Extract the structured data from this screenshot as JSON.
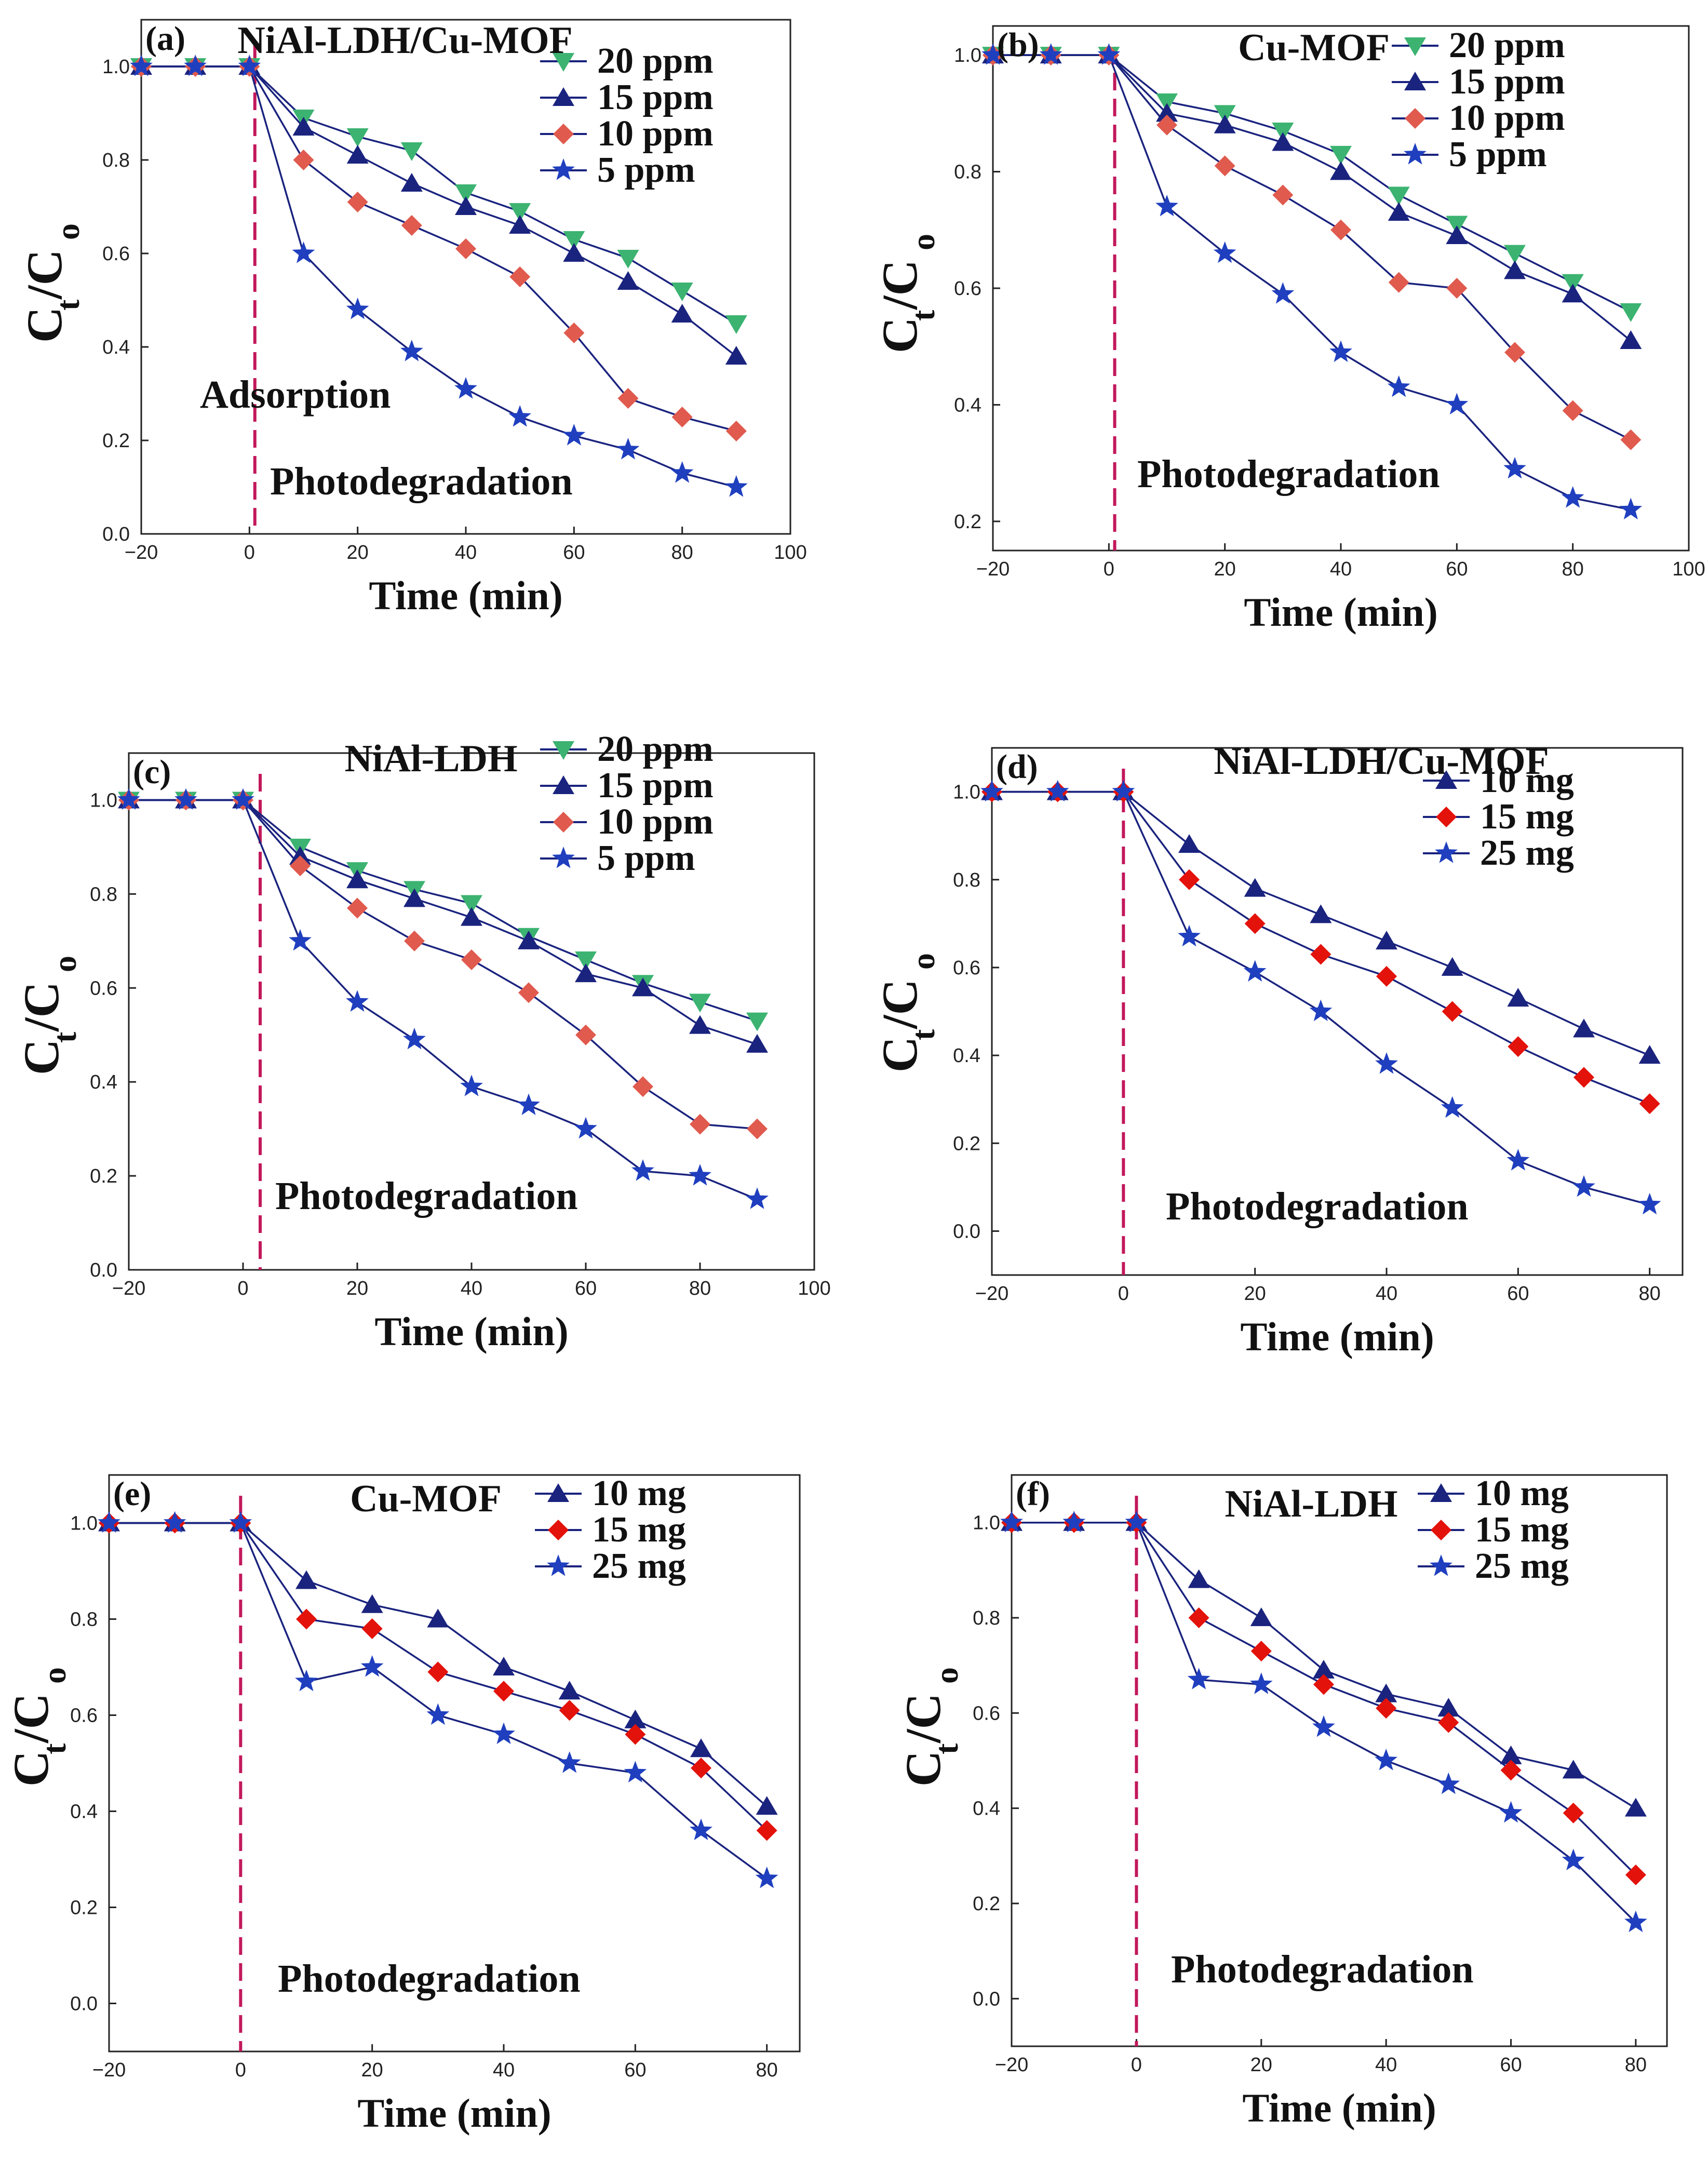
{
  "figure": {
    "colors": {
      "c20": "#3cb371",
      "c15": "#1a237e",
      "c10": "#e05a4e",
      "c5": "#1f3fbf",
      "red_dark": "#e3120b",
      "marker_line": "#1a237e",
      "dashed_line": "#c2185b"
    }
  },
  "chart_data": [
    {
      "id": "a",
      "type": "line",
      "panel_label": "(a)",
      "title": "NiAl-LDH/Cu-MOF",
      "xlabel": "Time (min)",
      "ylabel": "C",
      "ylabel_sub1": "t",
      "ylabel_slash": "/C",
      "ylabel_sub2": "o",
      "xlim": [
        -20,
        100
      ],
      "ylim": [
        0,
        1.1
      ],
      "xticks": [
        "−20",
        "0",
        "20",
        "40",
        "60",
        "80",
        "100"
      ],
      "xtick_values": [
        -20,
        0,
        20,
        40,
        60,
        80,
        100
      ],
      "yticks": [
        "0.0",
        "0.2",
        "0.4",
        "0.6",
        "0.8",
        "1.0"
      ],
      "ytick_values": [
        0,
        0.2,
        0.4,
        0.6,
        0.8,
        1.0
      ],
      "dashed_x": 1,
      "annotations": [
        "Adsorption",
        "Photodegradation"
      ],
      "x": [
        -20,
        -10,
        0,
        10,
        20,
        30,
        40,
        50,
        60,
        70,
        80,
        90
      ],
      "series": [
        {
          "name": "20 ppm",
          "marker": "triangle-down",
          "color_key": "c20",
          "values": [
            1,
            1,
            1,
            0.89,
            0.85,
            0.82,
            0.73,
            0.69,
            0.63,
            0.59,
            0.52,
            0.45
          ]
        },
        {
          "name": "15 ppm",
          "marker": "triangle-up",
          "color_key": "c15",
          "values": [
            1,
            1,
            1,
            0.87,
            0.81,
            0.75,
            0.7,
            0.66,
            0.6,
            0.54,
            0.47,
            0.38
          ]
        },
        {
          "name": "10 ppm",
          "marker": "diamond",
          "color_key": "c10",
          "values": [
            1,
            1,
            1,
            0.8,
            0.71,
            0.66,
            0.61,
            0.55,
            0.43,
            0.29,
            0.25,
            0.22
          ]
        },
        {
          "name": "5 ppm",
          "marker": "star",
          "color_key": "c5",
          "values": [
            1,
            1,
            1,
            0.6,
            0.48,
            0.39,
            0.31,
            0.25,
            0.21,
            0.18,
            0.13,
            0.1
          ]
        }
      ]
    },
    {
      "id": "b",
      "type": "line",
      "panel_label": "(b)",
      "title": "Cu-MOF",
      "xlabel": "Time (min)",
      "ylabel": "C",
      "ylabel_sub1": "t",
      "ylabel_slash": "/C",
      "ylabel_sub2": "o",
      "xlim": [
        -20,
        100
      ],
      "ylim": [
        0.15,
        1.05
      ],
      "xticks": [
        "−20",
        "0",
        "20",
        "40",
        "60",
        "80",
        "100"
      ],
      "xtick_values": [
        -20,
        0,
        20,
        40,
        60,
        80,
        100
      ],
      "yticks": [
        "0.2",
        "0.4",
        "0.6",
        "0.8",
        "1.0"
      ],
      "ytick_values": [
        0.2,
        0.4,
        0.6,
        0.8,
        1.0
      ],
      "dashed_x": 1,
      "annotations": [
        "Photodegradation"
      ],
      "x": [
        -20,
        -10,
        0,
        10,
        20,
        30,
        40,
        50,
        60,
        70,
        80,
        90
      ],
      "series": [
        {
          "name": "20 ppm",
          "marker": "triangle-down",
          "color_key": "c20",
          "values": [
            1,
            1,
            1,
            0.92,
            0.9,
            0.87,
            0.83,
            0.76,
            0.71,
            0.66,
            0.61,
            0.56
          ]
        },
        {
          "name": "15 ppm",
          "marker": "triangle-up",
          "color_key": "c15",
          "values": [
            1,
            1,
            1,
            0.9,
            0.88,
            0.85,
            0.8,
            0.73,
            0.69,
            0.63,
            0.59,
            0.51
          ]
        },
        {
          "name": "10 ppm",
          "marker": "diamond",
          "color_key": "c10",
          "values": [
            1,
            1,
            1,
            0.88,
            0.81,
            0.76,
            0.7,
            0.61,
            0.6,
            0.49,
            0.39,
            0.34
          ]
        },
        {
          "name": "5 ppm",
          "marker": "star",
          "color_key": "c5",
          "values": [
            1,
            1,
            1,
            0.74,
            0.66,
            0.59,
            0.49,
            0.43,
            0.4,
            0.29,
            0.24,
            0.22
          ]
        }
      ]
    },
    {
      "id": "c",
      "type": "line",
      "panel_label": "(c)",
      "title": "NiAl-LDH",
      "xlabel": "Time (min)",
      "ylabel": "C",
      "ylabel_sub1": "t",
      "ylabel_slash": "/C",
      "ylabel_sub2": "o",
      "xlim": [
        -20,
        100
      ],
      "ylim": [
        0,
        1.1
      ],
      "xticks": [
        "−20",
        "0",
        "20",
        "40",
        "60",
        "80",
        "100"
      ],
      "xtick_values": [
        -20,
        0,
        20,
        40,
        60,
        80,
        100
      ],
      "yticks": [
        "0.0",
        "0.2",
        "0.4",
        "0.6",
        "0.8",
        "1.0"
      ],
      "ytick_values": [
        0,
        0.2,
        0.4,
        0.6,
        0.8,
        1.0
      ],
      "dashed_x": 3,
      "annotations": [
        "Photodegradation"
      ],
      "x": [
        -20,
        -10,
        0,
        10,
        20,
        30,
        40,
        50,
        60,
        70,
        80,
        90
      ],
      "series": [
        {
          "name": "20 ppm",
          "marker": "triangle-down",
          "color_key": "c20",
          "values": [
            1,
            1,
            1,
            0.9,
            0.85,
            0.81,
            0.78,
            0.71,
            0.66,
            0.61,
            0.57,
            0.53
          ]
        },
        {
          "name": "15 ppm",
          "marker": "triangle-up",
          "color_key": "c15",
          "values": [
            1,
            1,
            1,
            0.88,
            0.83,
            0.79,
            0.75,
            0.7,
            0.63,
            0.6,
            0.52,
            0.48
          ]
        },
        {
          "name": "10 ppm",
          "marker": "diamond",
          "color_key": "c10",
          "values": [
            1,
            1,
            1,
            0.86,
            0.77,
            0.7,
            0.66,
            0.59,
            0.5,
            0.39,
            0.31,
            0.3
          ]
        },
        {
          "name": "5 ppm",
          "marker": "star",
          "color_key": "c5",
          "values": [
            1,
            1,
            1,
            0.7,
            0.57,
            0.49,
            0.39,
            0.35,
            0.3,
            0.21,
            0.2,
            0.15
          ]
        }
      ]
    },
    {
      "id": "d",
      "type": "line",
      "panel_label": "(d)",
      "title": "NiAl-LDH/Cu-MOF",
      "xlabel": "Time (min)",
      "ylabel": "C",
      "ylabel_sub1": "t",
      "ylabel_slash": "/C",
      "ylabel_sub2": "o",
      "xlim": [
        -20,
        85
      ],
      "ylim": [
        -0.1,
        1.1
      ],
      "xticks": [
        "−20",
        "0",
        "20",
        "40",
        "60",
        "80"
      ],
      "xtick_values": [
        -20,
        0,
        20,
        40,
        60,
        80
      ],
      "yticks": [
        "0.0",
        "0.2",
        "0.4",
        "0.6",
        "0.8",
        "1.0"
      ],
      "ytick_values": [
        0,
        0.2,
        0.4,
        0.6,
        0.8,
        1.0
      ],
      "dashed_x": 0,
      "annotations": [
        "Photodegradation"
      ],
      "x": [
        -20,
        -10,
        0,
        10,
        20,
        30,
        40,
        50,
        60,
        70,
        80
      ],
      "series": [
        {
          "name": "10 mg",
          "marker": "triangle-up",
          "color_key": "c15",
          "values": [
            1,
            1,
            1,
            0.88,
            0.78,
            0.72,
            0.66,
            0.6,
            0.53,
            0.46,
            0.4
          ]
        },
        {
          "name": "15 mg",
          "marker": "diamond",
          "color_key": "red_dark",
          "values": [
            1,
            1,
            1,
            0.8,
            0.7,
            0.63,
            0.58,
            0.5,
            0.42,
            0.35,
            0.29
          ]
        },
        {
          "name": "25 mg",
          "marker": "star",
          "color_key": "c5",
          "values": [
            1,
            1,
            1,
            0.67,
            0.59,
            0.5,
            0.38,
            0.28,
            0.16,
            0.1,
            0.06
          ]
        }
      ]
    },
    {
      "id": "e",
      "type": "line",
      "panel_label": "(e)",
      "title": "Cu-MOF",
      "xlabel": "Time (min)",
      "ylabel": "C",
      "ylabel_sub1": "t",
      "ylabel_slash": "/C",
      "ylabel_sub2": "o",
      "xlim": [
        -20,
        85
      ],
      "ylim": [
        -0.1,
        1.1
      ],
      "xticks": [
        "−20",
        "0",
        "20",
        "40",
        "60",
        "80"
      ],
      "xtick_values": [
        -20,
        0,
        20,
        40,
        60,
        80
      ],
      "yticks": [
        "0.0",
        "0.2",
        "0.4",
        "0.6",
        "0.8",
        "1.0"
      ],
      "ytick_values": [
        0,
        0.2,
        0.4,
        0.6,
        0.8,
        1.0
      ],
      "dashed_x": 0,
      "annotations": [
        "Photodegradation"
      ],
      "x": [
        -20,
        -10,
        0,
        10,
        20,
        30,
        40,
        50,
        60,
        70,
        80
      ],
      "series": [
        {
          "name": "10 mg",
          "marker": "triangle-up",
          "color_key": "c15",
          "values": [
            1,
            1,
            1,
            0.88,
            0.83,
            0.8,
            0.7,
            0.65,
            0.59,
            0.53,
            0.41
          ]
        },
        {
          "name": "15 mg",
          "marker": "diamond",
          "color_key": "red_dark",
          "values": [
            1,
            1,
            1,
            0.8,
            0.78,
            0.69,
            0.65,
            0.61,
            0.56,
            0.49,
            0.36
          ]
        },
        {
          "name": "25 mg",
          "marker": "star",
          "color_key": "c5",
          "values": [
            1,
            1,
            1,
            0.67,
            0.7,
            0.6,
            0.56,
            0.5,
            0.48,
            0.36,
            0.26
          ]
        }
      ]
    },
    {
      "id": "f",
      "type": "line",
      "panel_label": "(f)",
      "title": "NiAl-LDH",
      "xlabel": "Time (min)",
      "ylabel": "C",
      "ylabel_sub1": "t",
      "ylabel_slash": "/C",
      "ylabel_sub2": "o",
      "xlim": [
        -20,
        85
      ],
      "ylim": [
        -0.1,
        1.1
      ],
      "xticks": [
        "−20",
        "0",
        "20",
        "40",
        "60",
        "80"
      ],
      "xtick_values": [
        -20,
        0,
        20,
        40,
        60,
        80
      ],
      "yticks": [
        "0.0",
        "0.2",
        "0.4",
        "0.6",
        "0.8",
        "1.0"
      ],
      "ytick_values": [
        0,
        0.2,
        0.4,
        0.6,
        0.8,
        1.0
      ],
      "dashed_x": 0,
      "annotations": [
        "Photodegradation"
      ],
      "x": [
        -20,
        -10,
        0,
        10,
        20,
        30,
        40,
        50,
        60,
        70,
        80
      ],
      "series": [
        {
          "name": "10 mg",
          "marker": "triangle-up",
          "color_key": "c15",
          "values": [
            1,
            1,
            1,
            0.88,
            0.8,
            0.69,
            0.64,
            0.61,
            0.51,
            0.48,
            0.4
          ]
        },
        {
          "name": "15 mg",
          "marker": "diamond",
          "color_key": "red_dark",
          "values": [
            1,
            1,
            1,
            0.8,
            0.73,
            0.66,
            0.61,
            0.58,
            0.48,
            0.39,
            0.26
          ]
        },
        {
          "name": "25 mg",
          "marker": "star",
          "color_key": "c5",
          "values": [
            1,
            1,
            1,
            0.67,
            0.66,
            0.57,
            0.5,
            0.45,
            0.39,
            0.29,
            0.16
          ]
        }
      ]
    }
  ]
}
